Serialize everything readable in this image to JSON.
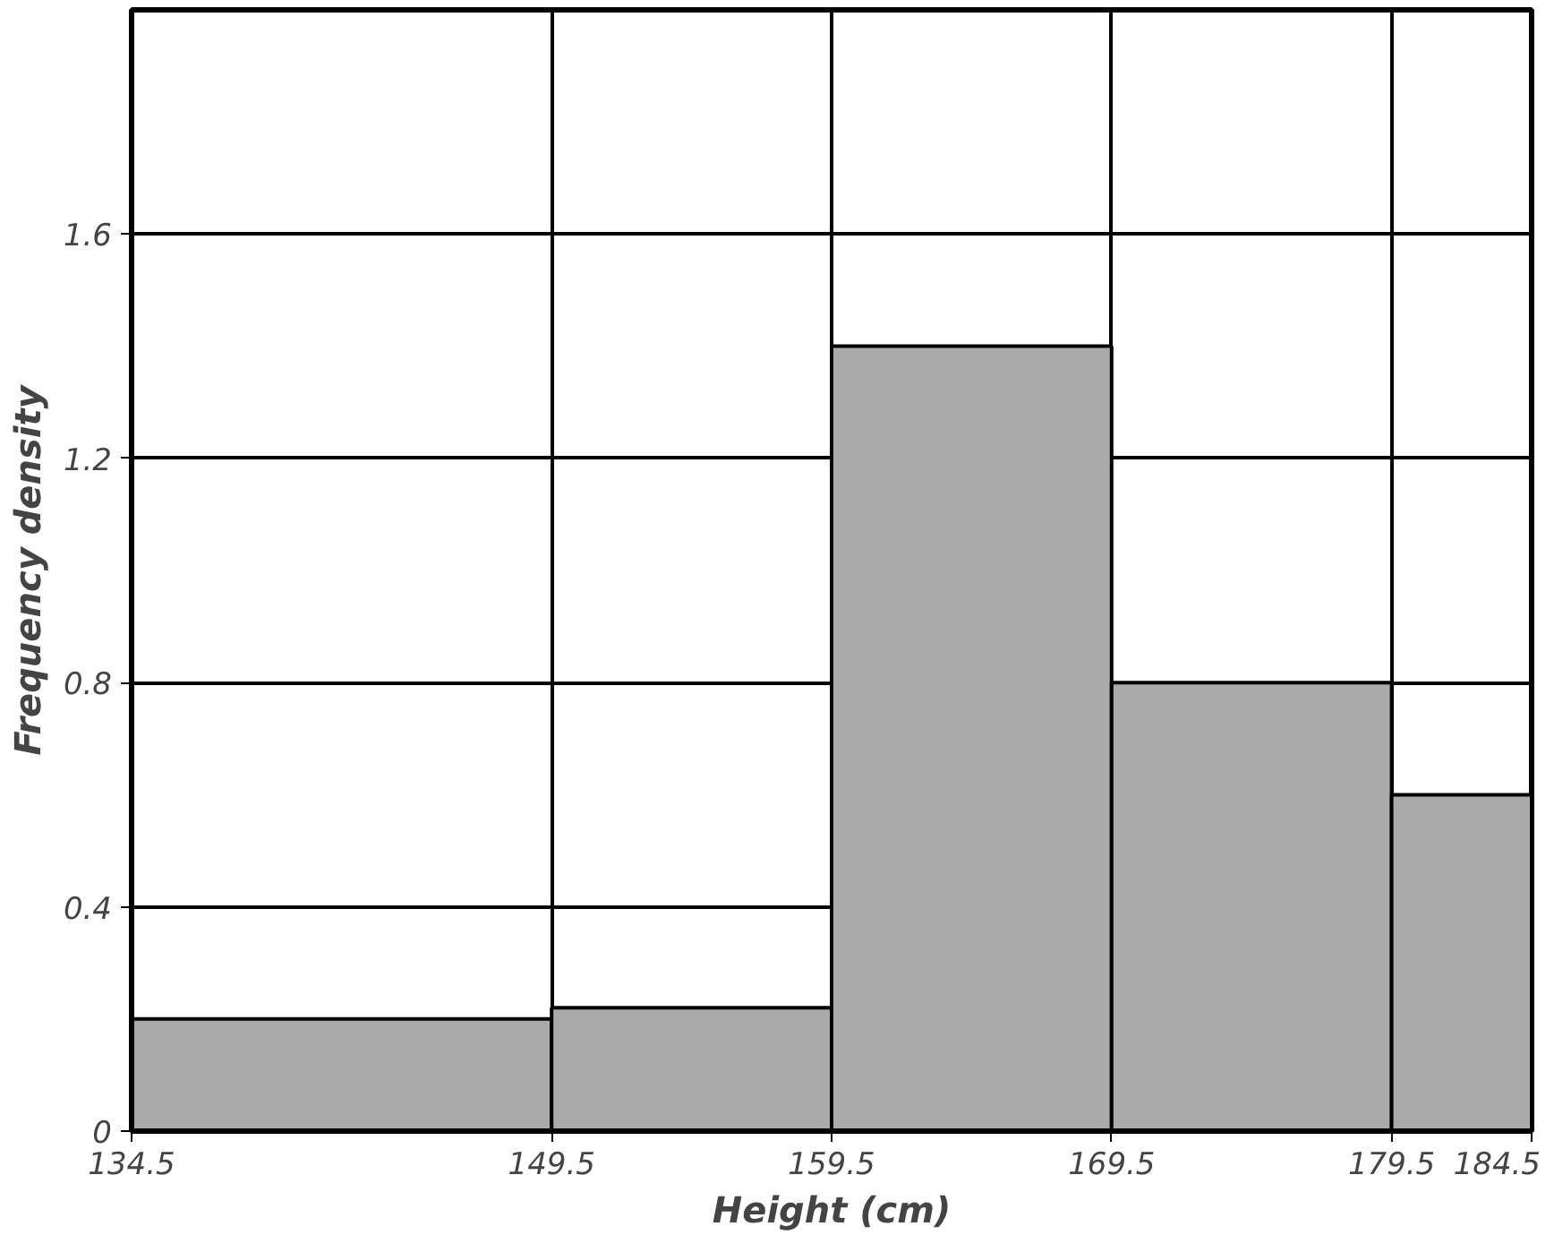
{
  "chart_data": {
    "type": "histogram",
    "xlabel": "Height (cm)",
    "ylabel": "Frequency density",
    "bins": [
      134.5,
      149.5,
      159.5,
      169.5,
      179.5,
      184.5
    ],
    "values": [
      0.2,
      0.22,
      1.4,
      0.8,
      0.6
    ],
    "color": "#aaaaaa",
    "xlim": [
      134.5,
      184.5
    ],
    "xticks": [
      134.5,
      149.5,
      159.5,
      169.5,
      179.5,
      184.5
    ],
    "ylim": [
      0,
      2
    ],
    "yticks": [
      {
        "value": 0,
        "label": "0"
      },
      {
        "value": 0.4,
        "label": "0.4"
      },
      {
        "value": 0.8,
        "label": "0.8"
      },
      {
        "value": 1.2,
        "label": "1.2"
      },
      {
        "value": 1.6,
        "label": "1.6"
      }
    ],
    "grid": true
  }
}
